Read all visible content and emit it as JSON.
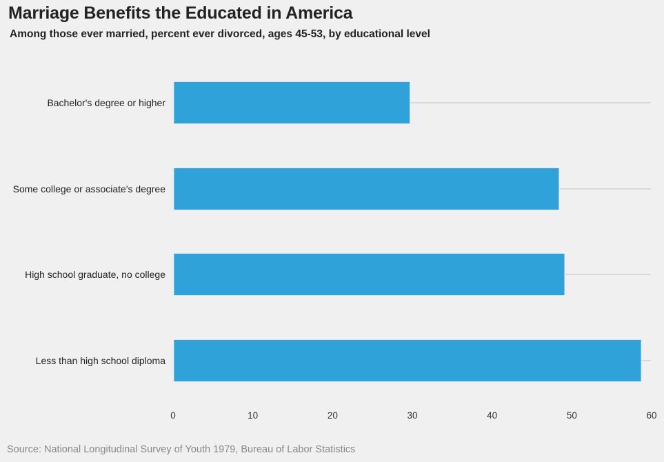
{
  "chart_data": {
    "type": "bar",
    "orientation": "horizontal",
    "title": "Marriage Benefits the Educated in America",
    "subtitle": "Among those ever married, percent ever divorced, ages 45-53, by educational level",
    "categories": [
      "Bachelor's degree or higher",
      "Some college or associate's degree",
      "High school graduate, no college",
      "Less than high school diploma"
    ],
    "values": [
      29.7,
      48.4,
      49.1,
      58.7
    ],
    "xlabel": "",
    "ylabel": "",
    "xlim": [
      0,
      60
    ],
    "xticks": [
      "0",
      "10",
      "20",
      "30",
      "40",
      "50",
      "60"
    ],
    "grid": true,
    "bar_color": "#30a2da",
    "grid_color": "#cbcbcb",
    "background": "#f0f0f0",
    "source": "Source: National Longitudinal Survey of Youth 1979, Bureau of Labor Statistics"
  }
}
